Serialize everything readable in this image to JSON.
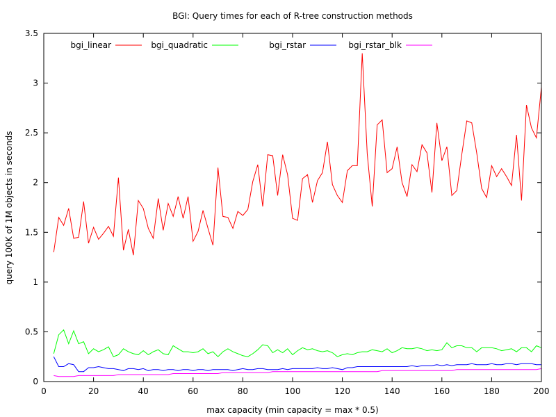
{
  "chart_data": {
    "type": "line",
    "title": "BGI: Query times for each of R-tree construction methods",
    "xlabel": "max capacity (min capacity = max * 0.5)",
    "ylabel": "query 100K of 1M objects in seconds",
    "xlim": [
      0,
      200
    ],
    "ylim": [
      0,
      3.5
    ],
    "x_ticks": [
      "0",
      "20",
      "40",
      "60",
      "80",
      "100",
      "120",
      "140",
      "160",
      "180",
      "200"
    ],
    "y_ticks": [
      "0",
      "0.5",
      "1",
      "1.5",
      "2",
      "2.5",
      "3",
      "3.5"
    ],
    "grid": false,
    "legend_position": "top",
    "x": [
      4,
      6,
      8,
      10,
      12,
      14,
      16,
      18,
      20,
      22,
      24,
      26,
      28,
      30,
      32,
      34,
      36,
      38,
      40,
      42,
      44,
      46,
      48,
      50,
      52,
      54,
      56,
      58,
      60,
      62,
      64,
      66,
      68,
      70,
      72,
      74,
      76,
      78,
      80,
      82,
      84,
      86,
      88,
      90,
      92,
      94,
      96,
      98,
      100,
      102,
      104,
      106,
      108,
      110,
      112,
      114,
      116,
      118,
      120,
      122,
      124,
      126,
      128,
      130,
      132,
      134,
      136,
      138,
      140,
      142,
      144,
      146,
      148,
      150,
      152,
      154,
      156,
      158,
      160,
      162,
      164,
      166,
      168,
      170,
      172,
      174,
      176,
      178,
      180,
      182,
      184,
      186,
      188,
      190,
      192,
      194,
      196,
      198,
      200
    ],
    "series": [
      {
        "name": "bgi_linear",
        "color": "#ff0000",
        "values": [
          1.3,
          1.65,
          1.57,
          1.74,
          1.44,
          1.45,
          1.81,
          1.39,
          1.55,
          1.43,
          1.49,
          1.56,
          1.46,
          2.05,
          1.32,
          1.53,
          1.27,
          1.82,
          1.74,
          1.54,
          1.44,
          1.84,
          1.52,
          1.79,
          1.66,
          1.86,
          1.64,
          1.86,
          1.41,
          1.51,
          1.72,
          1.54,
          1.37,
          2.15,
          1.66,
          1.65,
          1.54,
          1.71,
          1.67,
          1.73,
          2.01,
          2.18,
          1.76,
          2.28,
          2.27,
          1.87,
          2.28,
          2.08,
          1.64,
          1.62,
          2.04,
          2.08,
          1.8,
          2.02,
          2.1,
          2.41,
          1.98,
          1.87,
          1.8,
          2.12,
          2.17,
          2.17,
          3.3,
          2.29,
          1.76,
          2.58,
          2.63,
          2.1,
          2.14,
          2.36,
          2.0,
          1.86,
          2.18,
          2.11,
          2.38,
          2.3,
          1.9,
          2.6,
          2.22,
          2.36,
          1.87,
          1.92,
          2.28,
          2.62,
          2.6,
          2.3,
          1.94,
          1.85,
          2.17,
          2.06,
          2.14,
          2.06,
          1.97,
          2.48,
          1.82,
          2.78,
          2.55,
          2.45,
          2.96
        ]
      },
      {
        "name": "bgi_quadratic",
        "color": "#00ff00",
        "values": [
          0.28,
          0.47,
          0.52,
          0.38,
          0.51,
          0.38,
          0.4,
          0.28,
          0.33,
          0.3,
          0.32,
          0.35,
          0.25,
          0.27,
          0.33,
          0.3,
          0.28,
          0.27,
          0.31,
          0.27,
          0.3,
          0.32,
          0.28,
          0.27,
          0.36,
          0.33,
          0.3,
          0.3,
          0.29,
          0.3,
          0.33,
          0.28,
          0.3,
          0.25,
          0.3,
          0.33,
          0.3,
          0.28,
          0.26,
          0.25,
          0.28,
          0.32,
          0.37,
          0.36,
          0.29,
          0.32,
          0.29,
          0.33,
          0.27,
          0.31,
          0.34,
          0.32,
          0.33,
          0.31,
          0.3,
          0.31,
          0.29,
          0.25,
          0.27,
          0.28,
          0.27,
          0.29,
          0.3,
          0.3,
          0.32,
          0.31,
          0.3,
          0.33,
          0.29,
          0.31,
          0.34,
          0.33,
          0.33,
          0.34,
          0.33,
          0.31,
          0.32,
          0.31,
          0.32,
          0.39,
          0.34,
          0.36,
          0.36,
          0.34,
          0.34,
          0.3,
          0.34,
          0.34,
          0.34,
          0.33,
          0.31,
          0.32,
          0.33,
          0.3,
          0.34,
          0.34,
          0.3,
          0.36,
          0.34
        ]
      },
      {
        "name": "bgi_rstar",
        "color": "#0000ff",
        "values": [
          0.25,
          0.15,
          0.15,
          0.18,
          0.17,
          0.1,
          0.1,
          0.14,
          0.14,
          0.15,
          0.14,
          0.13,
          0.13,
          0.12,
          0.11,
          0.13,
          0.13,
          0.12,
          0.13,
          0.11,
          0.12,
          0.12,
          0.11,
          0.12,
          0.12,
          0.11,
          0.12,
          0.12,
          0.11,
          0.12,
          0.12,
          0.11,
          0.12,
          0.12,
          0.12,
          0.12,
          0.11,
          0.12,
          0.13,
          0.12,
          0.12,
          0.13,
          0.13,
          0.12,
          0.12,
          0.12,
          0.13,
          0.12,
          0.13,
          0.13,
          0.13,
          0.13,
          0.13,
          0.14,
          0.13,
          0.13,
          0.14,
          0.13,
          0.12,
          0.14,
          0.14,
          0.15,
          0.15,
          0.15,
          0.15,
          0.15,
          0.15,
          0.15,
          0.15,
          0.15,
          0.15,
          0.15,
          0.16,
          0.15,
          0.16,
          0.16,
          0.16,
          0.17,
          0.16,
          0.17,
          0.16,
          0.17,
          0.17,
          0.17,
          0.18,
          0.17,
          0.17,
          0.17,
          0.18,
          0.17,
          0.17,
          0.18,
          0.18,
          0.17,
          0.18,
          0.18,
          0.18,
          0.17,
          0.17
        ]
      },
      {
        "name": "bgi_rstar_blk",
        "color": "#ff00ff",
        "values": [
          0.06,
          0.05,
          0.05,
          0.05,
          0.05,
          0.06,
          0.06,
          0.06,
          0.06,
          0.06,
          0.06,
          0.06,
          0.06,
          0.07,
          0.07,
          0.07,
          0.07,
          0.07,
          0.07,
          0.07,
          0.07,
          0.07,
          0.07,
          0.07,
          0.08,
          0.08,
          0.08,
          0.08,
          0.08,
          0.08,
          0.08,
          0.08,
          0.08,
          0.08,
          0.09,
          0.09,
          0.09,
          0.09,
          0.09,
          0.09,
          0.09,
          0.09,
          0.09,
          0.09,
          0.1,
          0.1,
          0.1,
          0.1,
          0.1,
          0.1,
          0.1,
          0.1,
          0.1,
          0.1,
          0.1,
          0.1,
          0.1,
          0.1,
          0.1,
          0.1,
          0.1,
          0.1,
          0.1,
          0.1,
          0.1,
          0.1,
          0.11,
          0.11,
          0.11,
          0.11,
          0.11,
          0.11,
          0.11,
          0.11,
          0.11,
          0.11,
          0.11,
          0.11,
          0.11,
          0.11,
          0.11,
          0.12,
          0.12,
          0.12,
          0.12,
          0.12,
          0.12,
          0.12,
          0.12,
          0.12,
          0.12,
          0.12,
          0.12,
          0.12,
          0.12,
          0.12,
          0.12,
          0.12,
          0.13
        ]
      }
    ]
  }
}
